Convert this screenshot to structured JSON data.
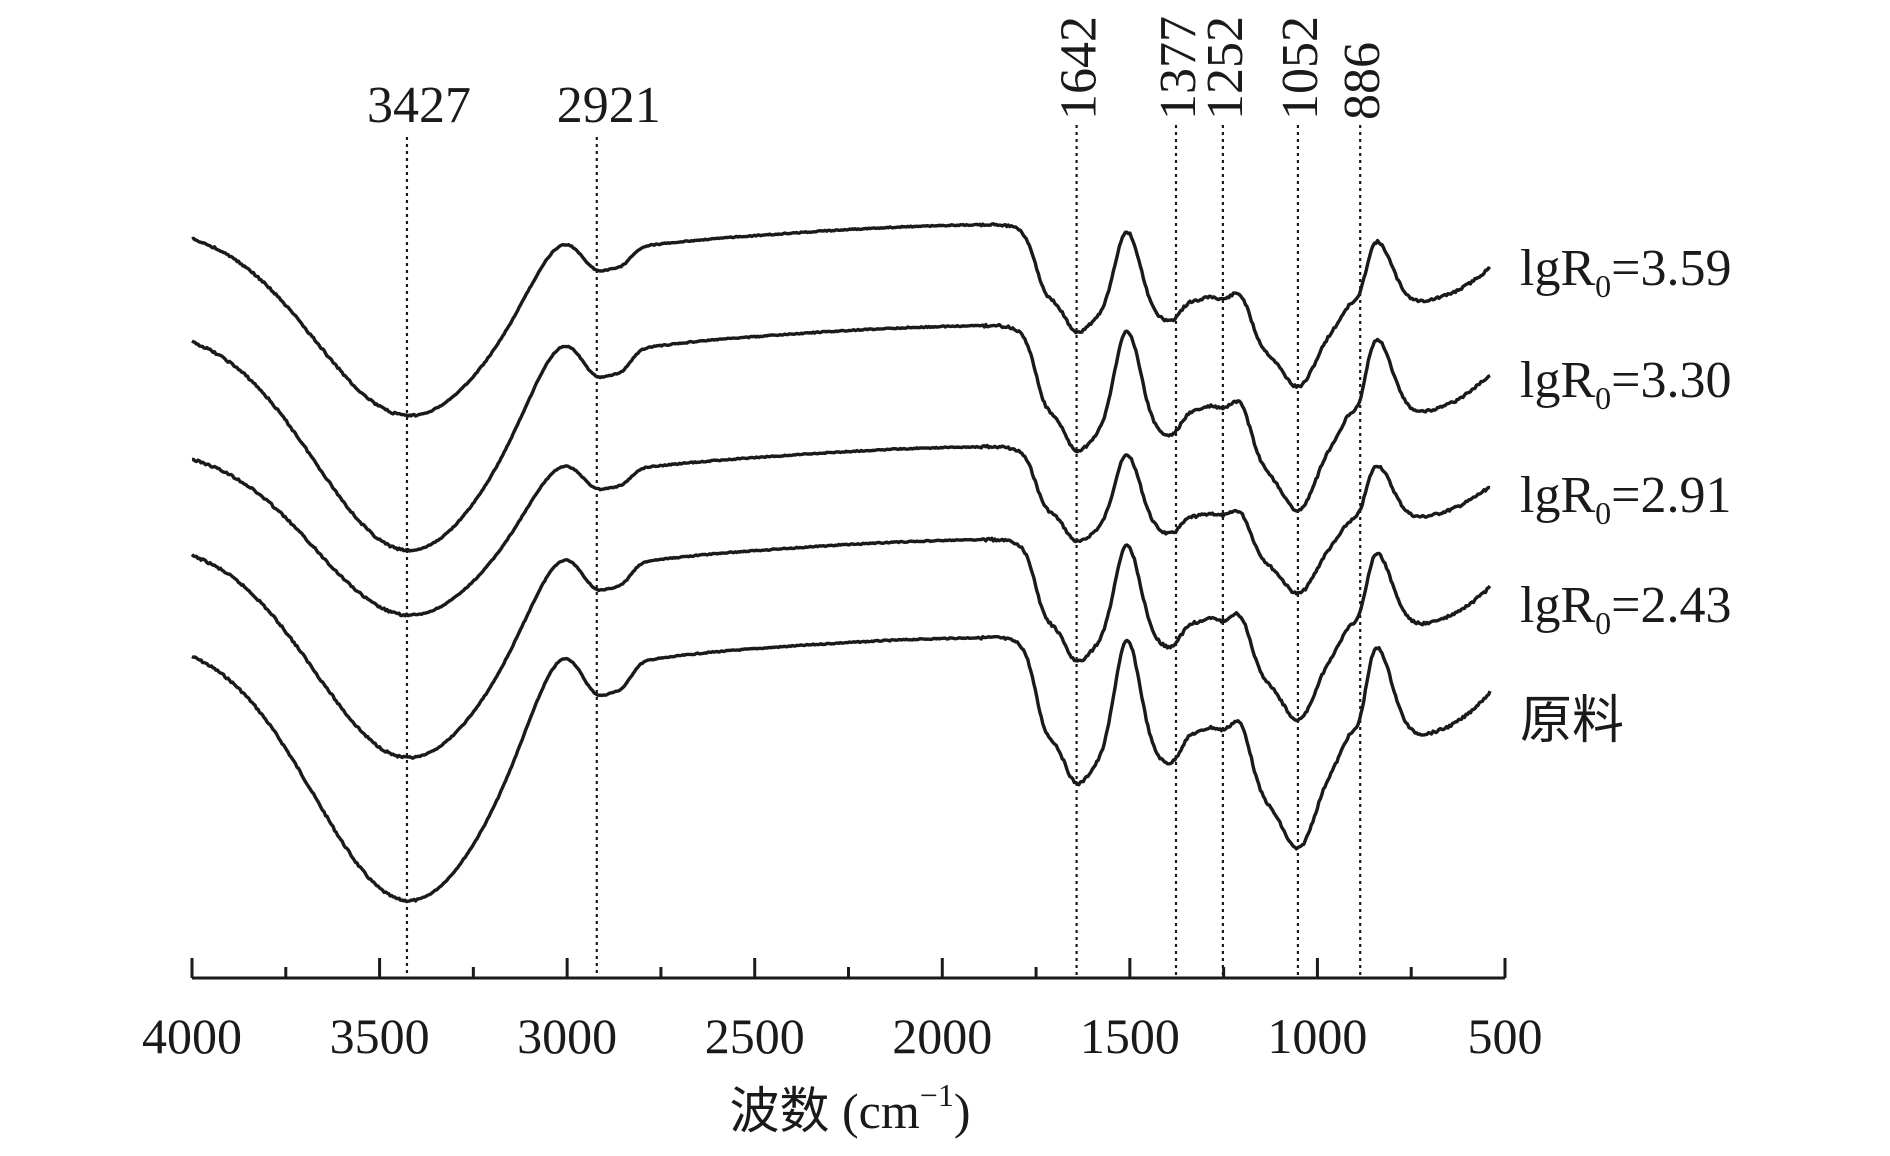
{
  "chart_data": {
    "type": "line",
    "title": "",
    "xlabel": "波数 (cm",
    "xlabel_sup": "−1",
    "xlabel_close": ")",
    "ylabel": "",
    "xlim": [
      4000,
      500
    ],
    "x_reversed": true,
    "x_ticks": [
      4000,
      3500,
      3000,
      2500,
      2000,
      1500,
      1000,
      500
    ],
    "x_tick_labels": [
      "4000",
      "3500",
      "3000",
      "2500",
      "2000",
      "1500",
      "1000",
      "500"
    ],
    "grid": false,
    "legend": "labels at right end of each series",
    "peaks": [
      {
        "x": 3427,
        "label": "3427",
        "orientation": "horizontal"
      },
      {
        "x": 2921,
        "label": "2921",
        "orientation": "horizontal"
      },
      {
        "x": 1642,
        "label": "1642",
        "orientation": "vertical"
      },
      {
        "x": 1377,
        "label": "1377",
        "orientation": "vertical"
      },
      {
        "x": 1252,
        "label": "1252",
        "orientation": "vertical"
      },
      {
        "x": 1052,
        "label": "1052",
        "orientation": "vertical"
      },
      {
        "x": 886,
        "label": "886",
        "orientation": "vertical"
      }
    ],
    "series": [
      {
        "name": "lgR0=3.59",
        "label_main": "lgR",
        "label_sub": "0",
        "label_tail": "=3.59",
        "offset": 4
      },
      {
        "name": "lgR0=3.30",
        "label_main": "lgR",
        "label_sub": "0",
        "label_tail": "=3.30",
        "offset": 3
      },
      {
        "name": "lgR0=2.91",
        "label_main": "lgR",
        "label_sub": "0",
        "label_tail": "=2.91",
        "offset": 2
      },
      {
        "name": "lgR0=2.43",
        "label_main": "lgR",
        "label_sub": "0",
        "label_tail": "=2.43",
        "offset": 1
      },
      {
        "name": "原料",
        "label_main": "原料",
        "label_sub": "",
        "label_tail": "",
        "offset": 0
      }
    ]
  }
}
